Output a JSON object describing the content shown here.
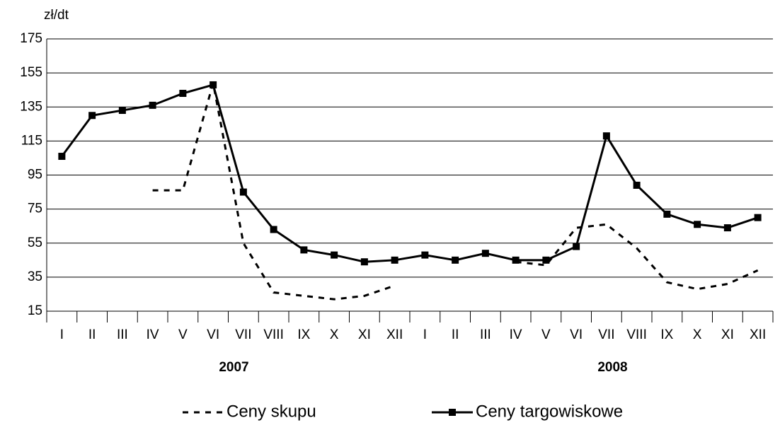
{
  "chart_data": {
    "type": "line",
    "y_label": "zł/dt",
    "categories": [
      "I",
      "II",
      "III",
      "IV",
      "V",
      "VI",
      "VII",
      "VIII",
      "IX",
      "X",
      "XI",
      "XII",
      "I",
      "II",
      "III",
      "IV",
      "V",
      "VI",
      "VII",
      "VIII",
      "IX",
      "X",
      "XI",
      "XII"
    ],
    "annotations": [
      "2007",
      "2008"
    ],
    "series": [
      {
        "name": "Ceny skupu",
        "color": "#000000",
        "dash": true,
        "marker": false,
        "values": [
          null,
          null,
          null,
          86,
          86,
          149,
          55,
          26,
          24,
          22,
          24,
          30,
          null,
          null,
          null,
          44,
          42,
          64,
          66,
          52,
          32,
          28,
          31,
          39
        ]
      },
      {
        "name": "Ceny targowiskowe",
        "color": "#000000",
        "dash": false,
        "marker": true,
        "values": [
          106,
          130,
          133,
          136,
          143,
          148,
          85,
          63,
          51,
          48,
          44,
          45,
          48,
          45,
          49,
          45,
          45,
          53,
          118,
          89,
          72,
          66,
          64,
          70
        ]
      }
    ],
    "ylim": [
      15,
      175
    ],
    "yticks": [
      15,
      35,
      55,
      75,
      95,
      115,
      135,
      155,
      175
    ],
    "grid": true,
    "legend": "bottom"
  }
}
